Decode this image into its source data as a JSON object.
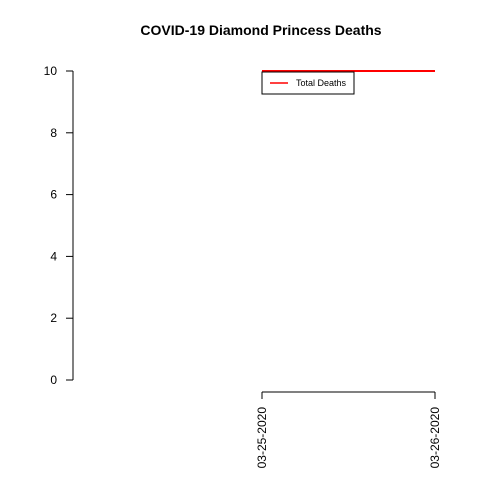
{
  "chart_data": {
    "type": "line",
    "title": "COVID-19 Diamond Princess Deaths",
    "xlabel": "",
    "ylabel": "",
    "x": [
      "03-25-2020",
      "03-26-2020"
    ],
    "series": [
      {
        "name": "Total Deaths",
        "values": [
          10,
          10
        ],
        "color": "#ff0000"
      }
    ],
    "ylim": [
      0,
      10
    ],
    "yticks": [
      0,
      2,
      4,
      6,
      8,
      10
    ],
    "xtick_labels": [
      "03-25-2020",
      "03-26-2020"
    ],
    "x_label_orientation": "vertical",
    "grid": false,
    "legend": {
      "position": "top",
      "entries": [
        "Total Deaths"
      ]
    }
  }
}
